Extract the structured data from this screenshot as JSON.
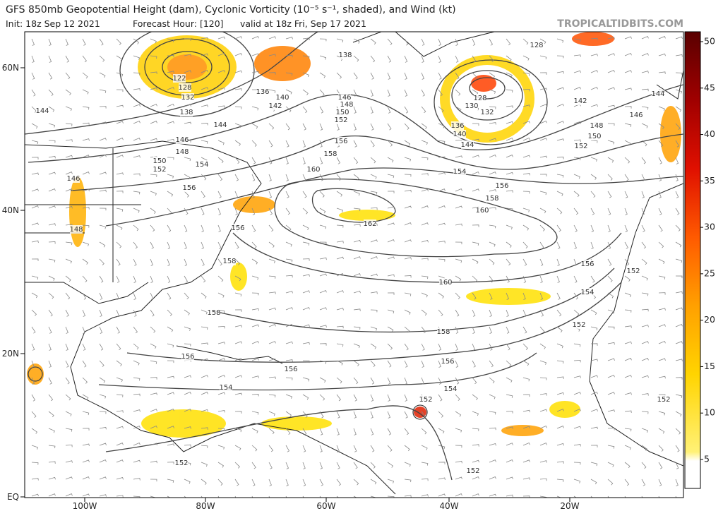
{
  "header": {
    "title": "GFS 850mb Geopotential Height (dam), Cyclonic Vorticity (10⁻⁵ s⁻¹, shaded), and Wind (kt)",
    "init": "Init: 18z Sep 12 2021",
    "forecast_hour": "Forecast Hour: [120]",
    "valid": "valid at 18z Fri, Sep 17 2021",
    "watermark": "TROPICALTIDBITS.COM"
  },
  "map": {
    "lat_labels": [
      "60N",
      "40N",
      "20N",
      "EQ"
    ],
    "lon_labels": [
      "100W",
      "80W",
      "60W",
      "40W",
      "20W"
    ],
    "contour_labels": [
      "138",
      "146",
      "148",
      "150",
      "152",
      "156",
      "158",
      "160",
      "162",
      "160",
      "158",
      "156",
      "154",
      "152",
      "152",
      "152",
      "154",
      "156",
      "156",
      "158",
      "158",
      "156",
      "128",
      "128",
      "130",
      "132",
      "136",
      "140",
      "144",
      "142",
      "148",
      "150",
      "152",
      "154",
      "156",
      "158",
      "160",
      "156",
      "154",
      "152",
      "152",
      "152",
      "144",
      "146",
      "122",
      "128",
      "132",
      "138",
      "136",
      "140",
      "142",
      "144",
      "144",
      "146",
      "148",
      "150",
      "152",
      "154",
      "156",
      "146",
      "148"
    ]
  },
  "colorbar": {
    "ticks": [
      5,
      10,
      15,
      20,
      25,
      30,
      35,
      40,
      45,
      50
    ]
  }
}
